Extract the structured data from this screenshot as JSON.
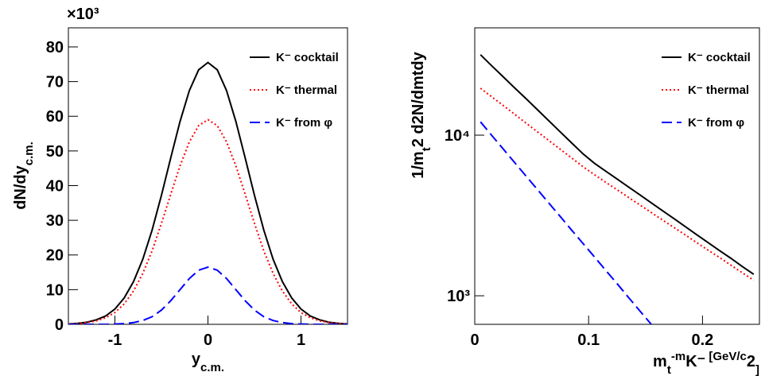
{
  "chart_data": [
    {
      "type": "line",
      "multiplier": "×10³",
      "xlabel_parts": [
        "y",
        "c.m."
      ],
      "ylabel_parts": [
        "dN/dy",
        "c.m."
      ],
      "x": [
        -1.5,
        -1.4,
        -1.3,
        -1.2,
        -1.1,
        -1.0,
        -0.9,
        -0.8,
        -0.7,
        -0.6,
        -0.5,
        -0.4,
        -0.3,
        -0.2,
        -0.1,
        0,
        0.1,
        0.2,
        0.3,
        0.4,
        0.5,
        0.6,
        0.7,
        0.8,
        0.9,
        1.0,
        1.1,
        1.2,
        1.3,
        1.4,
        1.5
      ],
      "series": [
        {
          "name": "K⁻ cocktail",
          "color": "#000000",
          "dash": "solid",
          "values": [
            0.1,
            0.3,
            0.6,
            1.3,
            2.4,
            4.4,
            7.6,
            12.3,
            18.8,
            27.2,
            37.2,
            48.0,
            58.5,
            67.4,
            73.4,
            75.5,
            73.4,
            67.4,
            58.5,
            48.0,
            37.2,
            27.2,
            18.8,
            12.3,
            7.6,
            4.4,
            2.4,
            1.3,
            0.6,
            0.3,
            0.1
          ]
        },
        {
          "name": "K⁻ thermal",
          "color": "#ff0000",
          "dash": "dotted",
          "values": [
            0.1,
            0.2,
            0.5,
            1.0,
            1.9,
            3.4,
            5.9,
            9.6,
            14.7,
            21.2,
            29.1,
            37.5,
            45.7,
            52.6,
            57.3,
            59.0,
            57.3,
            52.6,
            45.7,
            37.5,
            29.1,
            21.2,
            14.7,
            9.6,
            5.9,
            3.4,
            1.9,
            1.0,
            0.5,
            0.2,
            0.1
          ]
        },
        {
          "name": "K⁻ from φ",
          "color": "#0000ff",
          "dash": "dashed",
          "values": [
            0,
            0,
            0,
            0,
            0,
            0.1,
            0.2,
            0.5,
            1.1,
            2.2,
            4.1,
            6.8,
            10.0,
            13.2,
            15.6,
            16.5,
            15.6,
            13.2,
            10.0,
            6.8,
            4.1,
            2.2,
            1.1,
            0.5,
            0.2,
            0.1,
            0,
            0,
            0,
            0,
            0
          ]
        }
      ],
      "xlim": [
        -1.5,
        1.5
      ],
      "xticks": [
        -1,
        0,
        1
      ],
      "ylim": [
        0,
        85.5
      ],
      "yticks": [
        0,
        10,
        20,
        30,
        40,
        50,
        60,
        70,
        80
      ],
      "log_y": false,
      "legend": "upper right"
    },
    {
      "type": "line",
      "xlabel_parts": [
        "m",
        "t",
        "-m",
        "K⁻",
        " [GeV/c",
        "2",
        "]"
      ],
      "ylabel_parts": [
        "1/m",
        "t",
        "2",
        " d",
        "2",
        "N/dm",
        "t",
        "dy"
      ],
      "x": [
        0.005,
        0.015,
        0.025,
        0.035,
        0.045,
        0.055,
        0.065,
        0.075,
        0.085,
        0.095,
        0.105,
        0.115,
        0.125,
        0.135,
        0.145,
        0.155,
        0.165,
        0.175,
        0.185,
        0.195,
        0.205,
        0.215,
        0.225,
        0.235,
        0.245
      ],
      "series": [
        {
          "name": "K⁻ cocktail",
          "color": "#000000",
          "dash": "solid",
          "values": [
            31700,
            27000,
            23100,
            19700,
            16900,
            14400,
            12300,
            10500,
            8970,
            7660,
            6690,
            5970,
            5330,
            4760,
            4250,
            3790,
            3380,
            3020,
            2690,
            2400,
            2140,
            1910,
            1710,
            1520,
            1360
          ]
        },
        {
          "name": "K⁻ thermal",
          "color": "#ff0000",
          "dash": "dotted",
          "values": [
            19600,
            17300,
            15300,
            13500,
            11900,
            10500,
            9270,
            8180,
            7220,
            6370,
            5680,
            5090,
            4570,
            4100,
            3680,
            3300,
            2960,
            2660,
            2390,
            2140,
            1920,
            1730,
            1550,
            1390,
            1250
          ]
        },
        {
          "name": "K⁻ from φ",
          "color": "#0000ff",
          "dash": "dashed",
          "values": [
            12100,
            9950,
            8200,
            6760,
            5570,
            4590,
            3780,
            3120,
            2570,
            2120,
            1750,
            1440,
            1190,
            977,
            805,
            664,
            null,
            null,
            null,
            null,
            null,
            null,
            null,
            null,
            null
          ]
        }
      ],
      "xlim": [
        0,
        0.25
      ],
      "xticks": [
        0,
        0.1,
        0.2
      ],
      "ylim": [
        664,
        46600
      ],
      "yticks": [
        {
          "value": 1000,
          "label": "10³"
        },
        {
          "value": 10000,
          "label": "10⁴"
        }
      ],
      "log_y": true,
      "legend": "upper right"
    }
  ]
}
